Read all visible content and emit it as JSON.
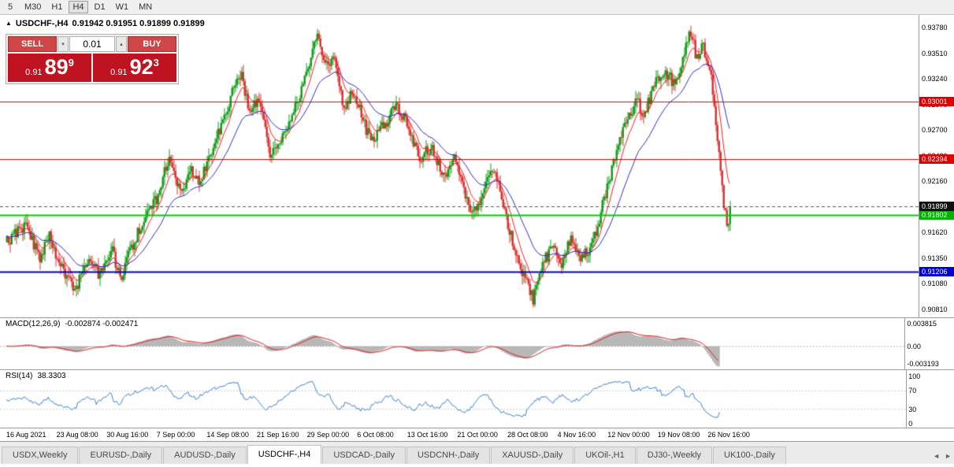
{
  "toolbar": {
    "timeframes": [
      "5",
      "M30",
      "H1",
      "H4",
      "D1",
      "W1",
      "MN"
    ],
    "active": "H4"
  },
  "chart": {
    "title": {
      "toggle_icon": "▲",
      "symbol": "USDCHF-,H4",
      "ohlc": "0.91942 0.91951 0.91899 0.91899"
    },
    "trade_panel": {
      "sell_label": "SELL",
      "buy_label": "BUY",
      "volume": "0.01",
      "spin_down": "▾",
      "spin_up": "▴",
      "sell_price": {
        "prefix": "0.91",
        "big": "89",
        "sup": "9"
      },
      "buy_price": {
        "prefix": "0.91",
        "big": "92",
        "sup": "3"
      }
    },
    "price_scale_labels": [
      "0.93780",
      "0.93510",
      "0.93240",
      "0.92970",
      "0.92700",
      "0.92430",
      "0.92160",
      "0.91890",
      "0.91620",
      "0.91350",
      "0.91080",
      "0.90810"
    ],
    "price_range": {
      "top": 0.9378,
      "bottom": 0.9081
    },
    "current_price": {
      "value": 0.91899,
      "label": "0.91899",
      "badge_color": "#111111",
      "text_color": "#ffffff"
    },
    "levels": [
      {
        "value": 0.93001,
        "label": "0.93001",
        "line_color": "#e00000",
        "badge_color": "#dd0000",
        "text_color": "#ffffff",
        "width": 1
      },
      {
        "value": 0.92394,
        "label": "0.92394",
        "line_color": "#e00000",
        "badge_color": "#dd0000",
        "text_color": "#ffffff",
        "width": 1
      },
      {
        "value": 0.91802,
        "label": "0.91802",
        "line_color": "#00cc00",
        "badge_color": "#00b300",
        "text_color": "#ffffff",
        "width": 2
      },
      {
        "value": 0.91206,
        "label": "0.91206",
        "line_color": "#0000bb",
        "badge_color": "#0000cc",
        "text_color": "#ffffff",
        "width": 2
      }
    ],
    "colors": {
      "up": "#0fa018",
      "down": "#e03232",
      "ma_fast": "#ff1a1a",
      "ma_slow": "#2b2bd0"
    },
    "candle_count": 460,
    "price_path": [
      [
        0.0,
        0.9152
      ],
      [
        0.024,
        0.917
      ],
      [
        0.046,
        0.9135
      ],
      [
        0.059,
        0.9158
      ],
      [
        0.078,
        0.912
      ],
      [
        0.095,
        0.9102
      ],
      [
        0.113,
        0.9138
      ],
      [
        0.127,
        0.9118
      ],
      [
        0.144,
        0.9146
      ],
      [
        0.157,
        0.9114
      ],
      [
        0.174,
        0.915
      ],
      [
        0.193,
        0.918
      ],
      [
        0.209,
        0.92
      ],
      [
        0.223,
        0.924
      ],
      [
        0.24,
        0.9206
      ],
      [
        0.256,
        0.9228
      ],
      [
        0.266,
        0.9212
      ],
      [
        0.281,
        0.9246
      ],
      [
        0.298,
        0.9278
      ],
      [
        0.316,
        0.9322
      ],
      [
        0.325,
        0.933
      ],
      [
        0.335,
        0.9286
      ],
      [
        0.349,
        0.9305
      ],
      [
        0.364,
        0.9242
      ],
      [
        0.379,
        0.9258
      ],
      [
        0.397,
        0.929
      ],
      [
        0.414,
        0.933
      ],
      [
        0.43,
        0.9372
      ],
      [
        0.44,
        0.9335
      ],
      [
        0.451,
        0.935
      ],
      [
        0.466,
        0.929
      ],
      [
        0.478,
        0.9312
      ],
      [
        0.49,
        0.9288
      ],
      [
        0.503,
        0.9256
      ],
      [
        0.517,
        0.9272
      ],
      [
        0.539,
        0.9295
      ],
      [
        0.556,
        0.9272
      ],
      [
        0.571,
        0.924
      ],
      [
        0.586,
        0.9252
      ],
      [
        0.604,
        0.922
      ],
      [
        0.619,
        0.9238
      ],
      [
        0.634,
        0.92
      ],
      [
        0.643,
        0.918
      ],
      [
        0.654,
        0.9198
      ],
      [
        0.669,
        0.9232
      ],
      [
        0.684,
        0.9202
      ],
      [
        0.697,
        0.9158
      ],
      [
        0.712,
        0.912
      ],
      [
        0.728,
        0.9092
      ],
      [
        0.743,
        0.9132
      ],
      [
        0.756,
        0.9148
      ],
      [
        0.767,
        0.913
      ],
      [
        0.78,
        0.9155
      ],
      [
        0.793,
        0.9138
      ],
      [
        0.806,
        0.9144
      ],
      [
        0.817,
        0.9168
      ],
      [
        0.828,
        0.9205
      ],
      [
        0.841,
        0.924
      ],
      [
        0.857,
        0.9282
      ],
      [
        0.871,
        0.93
      ],
      [
        0.882,
        0.9286
      ],
      [
        0.895,
        0.9318
      ],
      [
        0.91,
        0.9332
      ],
      [
        0.924,
        0.9318
      ],
      [
        0.937,
        0.9352
      ],
      [
        0.946,
        0.9374
      ],
      [
        0.954,
        0.9345
      ],
      [
        0.963,
        0.9358
      ],
      [
        0.973,
        0.933
      ],
      [
        0.983,
        0.9262
      ],
      [
        0.991,
        0.9195
      ],
      [
        0.997,
        0.9162
      ],
      [
        1.0,
        0.919
      ]
    ]
  },
  "macd": {
    "name": "MACD(12,26,9)",
    "values": "-0.002874 -0.002471",
    "scale": [
      "0.003815",
      "0.00",
      "-0.003193"
    ],
    "hist_color": "#b8b8b8",
    "signal_color": "#e02020"
  },
  "rsi": {
    "name": "RSI(14)",
    "value": "38.3303",
    "scale": [
      "100",
      "70",
      "30",
      "0"
    ],
    "line_color": "#3a7fd5"
  },
  "time_axis": [
    "16 Aug 2021",
    "23 Aug 08:00",
    "30 Aug 16:00",
    "7 Sep 00:00",
    "14 Sep 08:00",
    "21 Sep 16:00",
    "29 Sep 00:00",
    "6 Oct 08:00",
    "13 Oct 16:00",
    "21 Oct 00:00",
    "28 Oct 08:00",
    "4 Nov 16:00",
    "12 Nov 00:00",
    "19 Nov 08:00",
    "26 Nov 16:00"
  ],
  "tabs": {
    "items": [
      "USDX,Weekly",
      "EURUSD-,Daily",
      "AUDUSD-,Daily",
      "USDCHF-,H4",
      "USDCAD-,Daily",
      "USDCNH-,Daily",
      "XAUUSD-,Daily",
      "UKOil-,H1",
      "DJ30-,Weekly",
      "UK100-,Daily"
    ],
    "active": "USDCHF-,H4",
    "nav": {
      "prev": "◄",
      "next": "►"
    }
  }
}
